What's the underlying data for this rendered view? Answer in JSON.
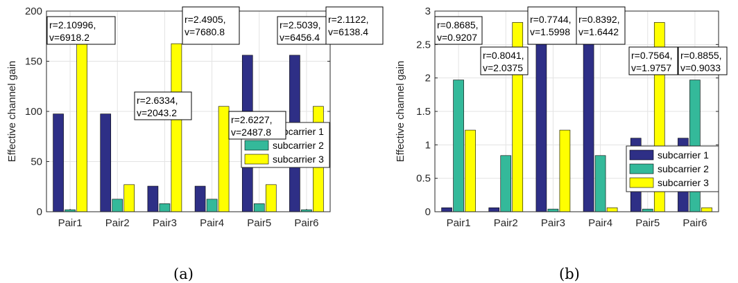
{
  "chart_data": [
    {
      "type": "bar",
      "panel_label": "(a)",
      "ylabel": "Effective channel gain",
      "categories": [
        "Pair1",
        "Pair2",
        "Pair3",
        "Pair4",
        "Pair5",
        "Pair6"
      ],
      "ylim": [
        0,
        200
      ],
      "yticks": [
        "0",
        "50",
        "100",
        "150",
        "200"
      ],
      "grid": true,
      "legend_position": "right",
      "series": [
        {
          "name": "subcarrier 1",
          "color": "#2e2f86",
          "values": [
            97.5,
            97.5,
            25.5,
            25.5,
            156,
            156
          ]
        },
        {
          "name": "subcarrier 2",
          "color": "#34b99a",
          "values": [
            2,
            12.5,
            8,
            12.5,
            8,
            2
          ]
        },
        {
          "name": "subcarrier 3",
          "color": "#ffff00",
          "values": [
            167.5,
            27,
            167.5,
            105,
            27,
            105
          ]
        }
      ],
      "annotations": [
        {
          "line1": "r=2.10996,",
          "line2": "v=6918.2",
          "pair": 0
        },
        {
          "line1": "r=2.6334,",
          "line2": "v=2043.2",
          "pair": 1
        },
        {
          "line1": "r=2.4905,",
          "line2": "v=7680.8",
          "pair": 2
        },
        {
          "line1": "r=2.6227,",
          "line2": "v=2487.8",
          "pair": 3
        },
        {
          "line1": "r=2.5039,",
          "line2": "v=6456.4",
          "pair": 4
        },
        {
          "line1": "r=2.1122,",
          "line2": "v=6138.4",
          "pair": 5
        }
      ]
    },
    {
      "type": "bar",
      "panel_label": "(b)",
      "ylabel": "Effective channel gain",
      "categories": [
        "Pair1",
        "Pair2",
        "Pair3",
        "Pair4",
        "Pair5",
        "Pair6"
      ],
      "ylim": [
        0,
        3
      ],
      "yticks": [
        "0",
        "0.5",
        "1",
        "1.5",
        "2",
        "2.5",
        "3"
      ],
      "grid": true,
      "legend_position": "lower-right",
      "series": [
        {
          "name": "subcarrier 1",
          "color": "#2e2f86",
          "values": [
            0.06,
            0.06,
            2.58,
            2.58,
            1.1,
            1.1
          ]
        },
        {
          "name": "subcarrier 2",
          "color": "#34b99a",
          "values": [
            1.97,
            0.84,
            0.04,
            0.84,
            0.04,
            1.97
          ]
        },
        {
          "name": "subcarrier 3",
          "color": "#ffff00",
          "values": [
            1.22,
            2.83,
            1.22,
            0.06,
            2.83,
            0.06
          ]
        }
      ],
      "annotations": [
        {
          "line1": "r=0.8685,",
          "line2": "v=0.9207",
          "pair": 0
        },
        {
          "line1": "r=0.8041,",
          "line2": "v=2.0375",
          "pair": 1
        },
        {
          "line1": "r=0.7744,",
          "line2": "v=1.5998",
          "pair": 2
        },
        {
          "line1": "r=0.8392,",
          "line2": "v=1.6442",
          "pair": 3
        },
        {
          "line1": "r=0.7564,",
          "line2": "v=1.9757",
          "pair": 4
        },
        {
          "line1": "r=0.8855,",
          "line2": "v=0.9033",
          "pair": 5
        }
      ]
    }
  ]
}
